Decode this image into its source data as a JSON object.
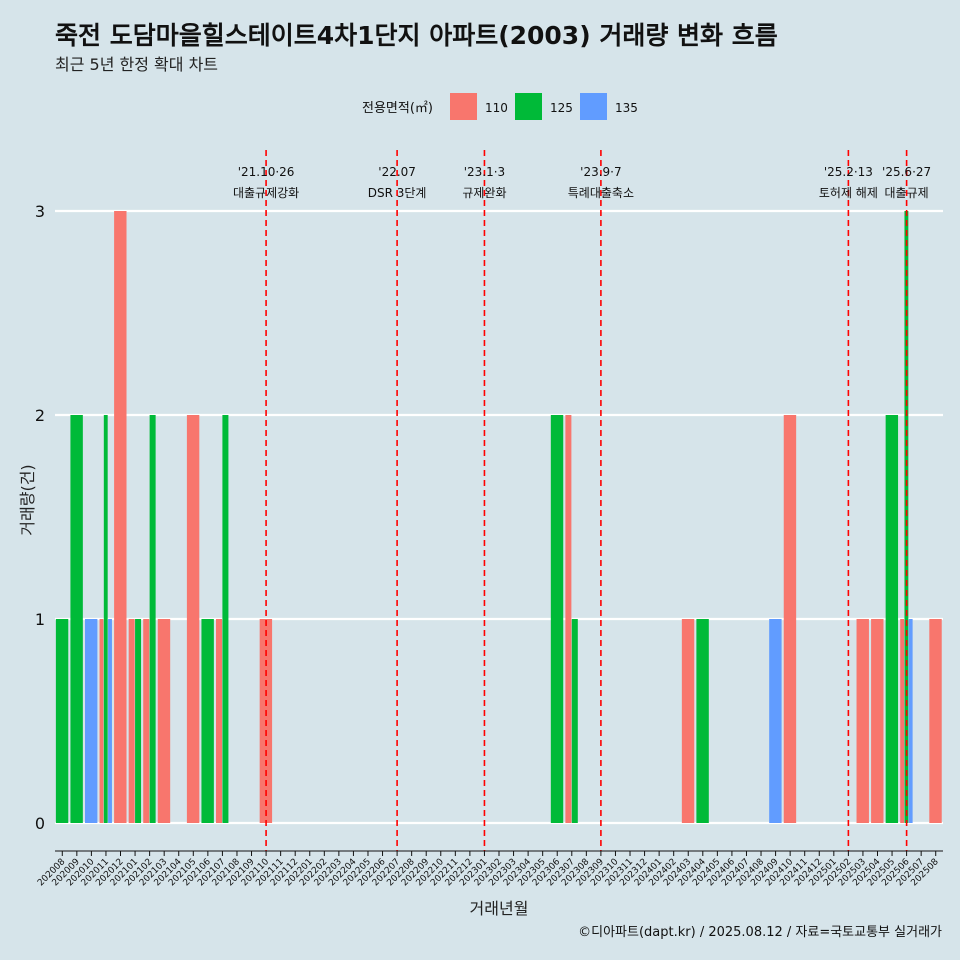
{
  "header": {
    "title": "죽전 도담마을힐스테이트4차1단지 아파트(2003) 거래량 변화 흐름",
    "subtitle": "최근 5년 한정 확대 차트"
  },
  "caption": "©디아파트(dapt.kr) / 2025.08.12 / 자료=국토교통부 실거래가",
  "chart_data": {
    "type": "bar",
    "xlabel": "거래년월",
    "ylabel": "거래량(건)",
    "ylim": [
      0,
      3.3
    ],
    "yticks": [
      "0",
      "1",
      "2",
      "3"
    ],
    "grid": true,
    "legend": {
      "title": "전용면적(㎡)",
      "placement": "top"
    },
    "colors": {
      "110": "#f8766d",
      "125": "#00ba38",
      "135": "#619cff"
    },
    "categories": [
      "202008",
      "202009",
      "202010",
      "202011",
      "202012",
      "202101",
      "202102",
      "202103",
      "202104",
      "202105",
      "202106",
      "202107",
      "202108",
      "202109",
      "202110",
      "202111",
      "202112",
      "202201",
      "202202",
      "202203",
      "202204",
      "202205",
      "202206",
      "202207",
      "202208",
      "202209",
      "202210",
      "202211",
      "202212",
      "202301",
      "202302",
      "202303",
      "202304",
      "202305",
      "202306",
      "202307",
      "202308",
      "202309",
      "202310",
      "202311",
      "202312",
      "202401",
      "202402",
      "202403",
      "202404",
      "202405",
      "202406",
      "202407",
      "202408",
      "202409",
      "202410",
      "202411",
      "202412",
      "202501",
      "202502",
      "202503",
      "202504",
      "202505",
      "202506",
      "202507",
      "202508"
    ],
    "series": [
      {
        "name": "110",
        "values": [
          0,
          0,
          0,
          1,
          3,
          1,
          1,
          1,
          0,
          2,
          0,
          1,
          0,
          0,
          1,
          0,
          0,
          0,
          0,
          0,
          0,
          0,
          0,
          0,
          0,
          0,
          0,
          0,
          0,
          0,
          0,
          0,
          0,
          0,
          0,
          2,
          0,
          0,
          0,
          0,
          0,
          0,
          0,
          1,
          0,
          0,
          0,
          0,
          0,
          0,
          2,
          0,
          0,
          0,
          0,
          1,
          1,
          0,
          1,
          0,
          1
        ]
      },
      {
        "name": "125",
        "values": [
          1,
          2,
          0,
          2,
          0,
          1,
          2,
          0,
          0,
          0,
          1,
          2,
          0,
          0,
          0,
          0,
          0,
          0,
          0,
          0,
          0,
          0,
          0,
          0,
          0,
          0,
          0,
          0,
          0,
          0,
          0,
          0,
          0,
          0,
          2,
          1,
          0,
          0,
          0,
          0,
          0,
          0,
          0,
          0,
          1,
          0,
          0,
          0,
          0,
          0,
          0,
          0,
          0,
          0,
          0,
          0,
          0,
          2,
          3,
          0,
          0
        ]
      },
      {
        "name": "135",
        "values": [
          0,
          0,
          1,
          1,
          0,
          0,
          0,
          0,
          0,
          0,
          0,
          0,
          0,
          0,
          0,
          0,
          0,
          0,
          0,
          0,
          0,
          0,
          0,
          0,
          0,
          0,
          0,
          0,
          0,
          0,
          0,
          0,
          0,
          0,
          0,
          0,
          0,
          0,
          0,
          0,
          0,
          0,
          0,
          0,
          0,
          0,
          0,
          0,
          0,
          1,
          0,
          0,
          0,
          0,
          0,
          0,
          0,
          0,
          1,
          0,
          0
        ]
      }
    ],
    "events": [
      {
        "x": "202110",
        "date": "'21.10·26",
        "label": "대출규제강화",
        "color": "#ff0000",
        "style": "dashed"
      },
      {
        "x": "202207",
        "date": "'22.07",
        "label": "DSR 3단계",
        "color": "#ff0000",
        "style": "dashed"
      },
      {
        "x": "202301",
        "date": "'23.1·3",
        "label": "규제완화",
        "color": "#ff0000",
        "style": "dashed"
      },
      {
        "x": "202309",
        "date": "'23.9·7",
        "label": "특례대출축소",
        "color": "#ff0000",
        "style": "dashed"
      },
      {
        "x": "202502",
        "date": "'25.2·13",
        "label": "토허제 해제",
        "color": "#ff0000",
        "style": "dashed"
      },
      {
        "x": "202506",
        "date": "'25.6·27",
        "label": "대출규제",
        "color": "#ff0000",
        "style": "dashed"
      }
    ]
  }
}
